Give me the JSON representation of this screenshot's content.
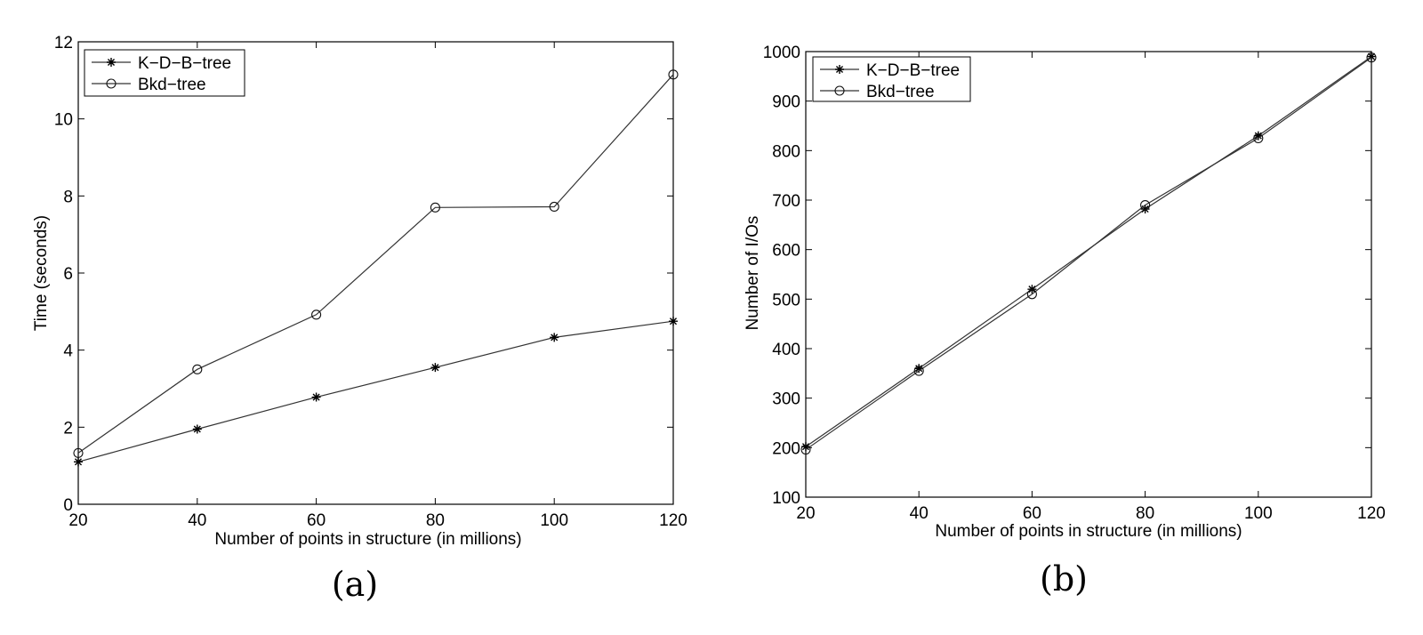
{
  "chart_data": [
    {
      "type": "line",
      "panel": "(a)",
      "xlabel": "Number of points in structure (in millions)",
      "ylabel": "Time (seconds)",
      "xlim": [
        20,
        120
      ],
      "ylim": [
        0,
        12
      ],
      "xticks": [
        20,
        40,
        60,
        80,
        100,
        120
      ],
      "yticks": [
        0,
        2,
        4,
        6,
        8,
        10,
        12
      ],
      "grid": false,
      "legend": "top-left",
      "x": [
        20,
        40,
        60,
        80,
        100,
        120
      ],
      "series": [
        {
          "name": "K−D−B−tree",
          "marker": "star",
          "values": [
            1.1,
            1.95,
            2.78,
            3.55,
            4.33,
            4.75
          ]
        },
        {
          "name": "Bkd−tree",
          "marker": "circle",
          "values": [
            1.33,
            3.5,
            4.92,
            7.7,
            7.72,
            11.15
          ]
        }
      ]
    },
    {
      "type": "line",
      "panel": "(b)",
      "xlabel": "Number of points in structure (in millions)",
      "ylabel": "Number of I/Os",
      "xlim": [
        20,
        120
      ],
      "ylim": [
        100,
        1000
      ],
      "xticks": [
        20,
        40,
        60,
        80,
        100,
        120
      ],
      "yticks": [
        100,
        200,
        300,
        400,
        500,
        600,
        700,
        800,
        900,
        1000
      ],
      "grid": false,
      "legend": "top-left",
      "x": [
        20,
        40,
        60,
        80,
        100,
        120
      ],
      "series": [
        {
          "name": "K−D−B−tree",
          "marker": "star",
          "values": [
            202,
            360,
            520,
            682,
            830,
            990
          ]
        },
        {
          "name": "Bkd−tree",
          "marker": "circle",
          "values": [
            196,
            355,
            510,
            690,
            825,
            988
          ]
        }
      ]
    }
  ]
}
